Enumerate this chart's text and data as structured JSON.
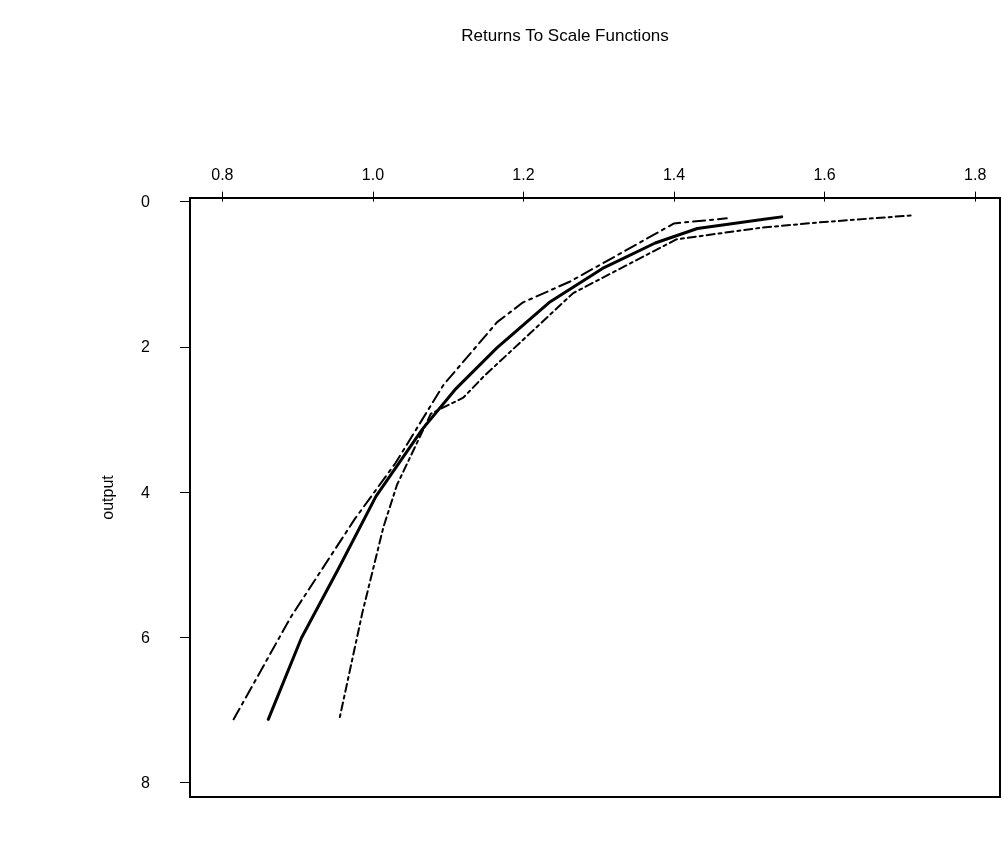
{
  "chart_data": {
    "type": "line",
    "title": "Returns To Scale Functions",
    "ylabel": "output",
    "xlim": [
      0.757,
      1.833
    ],
    "xticks": [
      {
        "value": 0.8,
        "label": "0.8"
      },
      {
        "value": 1,
        "label": "1.0"
      },
      {
        "value": 1.2,
        "label": "1.2"
      },
      {
        "value": 1.4,
        "label": "1.4"
      },
      {
        "value": 1.6,
        "label": "1.6"
      },
      {
        "value": 1.8,
        "label": "1.8"
      }
    ],
    "ylim": [
      8.2,
      -0.05
    ],
    "yticks": [
      0,
      2,
      4,
      6,
      8
    ],
    "grid": false,
    "marker": "none",
    "series": [
      {
        "color": "#000000",
        "line_style": "solid",
        "x": [
          0.861,
          0.905,
          0.954,
          1.004,
          1.066,
          1.109,
          1.165,
          1.234,
          1.305,
          1.375,
          1.431,
          1.543
        ],
        "values": [
          7.13,
          6.01,
          5.06,
          4.06,
          3.13,
          2.59,
          2.01,
          1.39,
          0.92,
          0.57,
          0.37,
          0.21
        ]
      },
      {
        "color": "#000000",
        "line_style": "dashed",
        "x": [
          0.815,
          0.891,
          0.976,
          1.03,
          1.094,
          1.165,
          1.199,
          1.262,
          1.4,
          1.47
        ],
        "values": [
          7.13,
          5.72,
          4.37,
          3.6,
          2.52,
          1.66,
          1.39,
          1.1,
          0.3,
          0.23
        ]
      },
      {
        "color": "#000000",
        "line_style": "dotted",
        "x": [
          0.956,
          0.986,
          1.014,
          1.032,
          1.077,
          1.12,
          1.147,
          1.206,
          1.266,
          1.403,
          1.515,
          1.588,
          1.715
        ],
        "values": [
          7.1,
          5.66,
          4.48,
          3.9,
          2.92,
          2.7,
          2.41,
          1.84,
          1.26,
          0.52,
          0.36,
          0.29,
          0.19
        ]
      }
    ]
  }
}
